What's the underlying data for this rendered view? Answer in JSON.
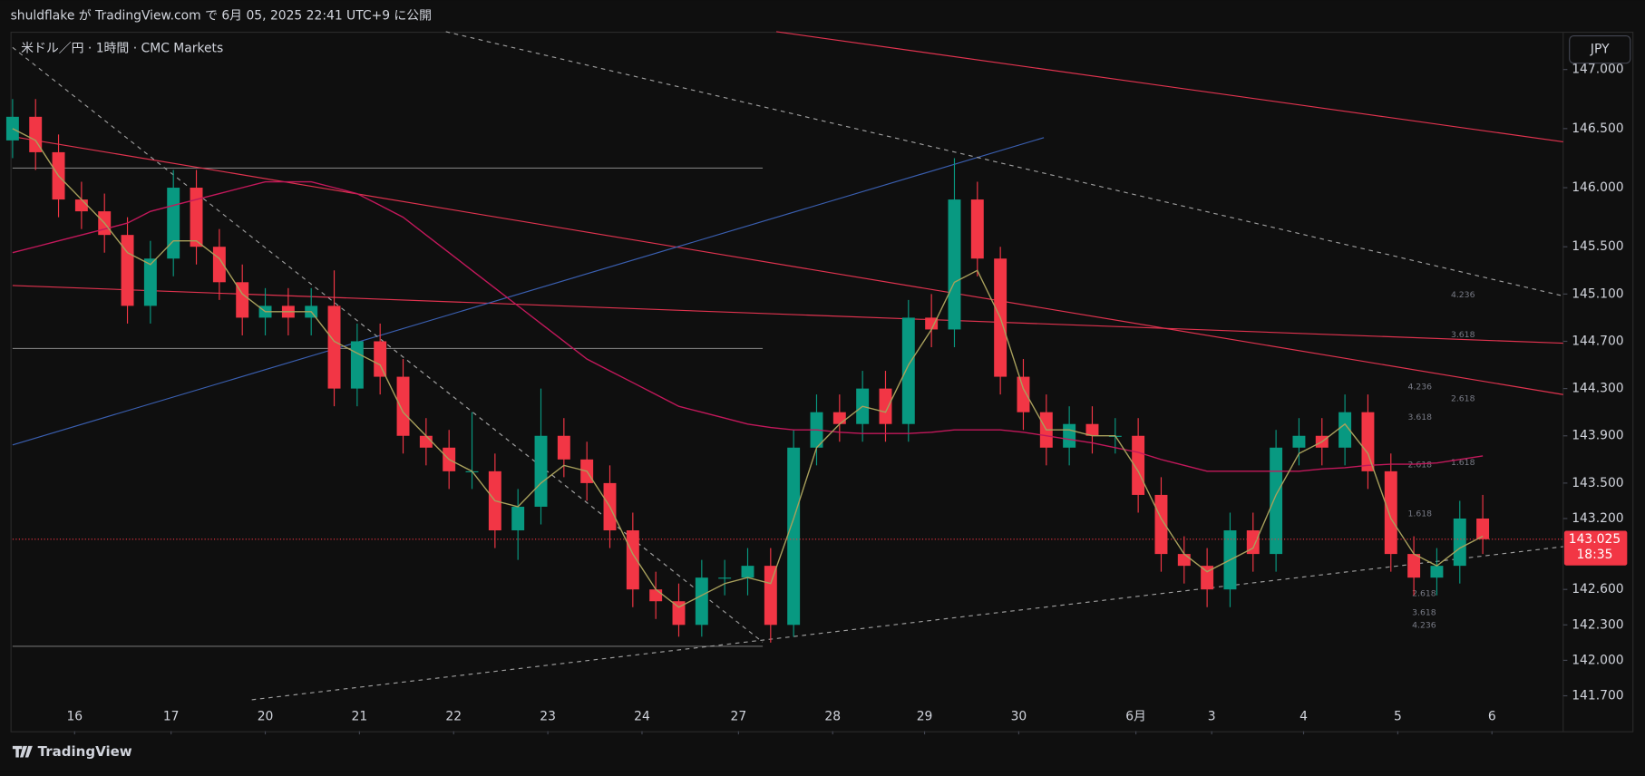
{
  "header": {
    "publish": "shuldflake が TradingView.com で 6月 05, 2025 22:41 UTC+9 に公開",
    "symbol": "米ドル／円 · 1時間 · CMC Markets",
    "currency": "JPY",
    "brand": "TradingView"
  },
  "chart_data": {
    "type": "candlestick",
    "open": [
      146.4,
      146.6,
      146.3,
      145.9,
      145.8,
      145.6,
      145.0,
      145.4,
      146.0,
      145.5,
      145.2,
      144.9,
      145.0,
      144.9,
      145.0,
      144.3,
      144.7,
      144.4,
      143.9,
      143.8,
      143.6,
      143.6,
      143.1,
      143.3,
      143.9,
      143.7,
      143.5,
      143.1,
      142.6,
      142.5,
      142.3,
      142.7,
      142.7,
      142.8,
      142.3,
      143.8,
      144.1,
      144.0,
      144.3,
      144.0,
      144.9,
      144.8,
      145.9,
      145.4,
      144.4,
      144.1,
      143.8,
      144.0,
      143.9,
      143.9,
      143.4,
      142.9,
      142.8,
      142.6,
      143.1,
      142.9,
      143.8,
      143.9,
      143.8,
      144.1,
      143.6,
      142.9,
      142.7,
      142.8,
      143.2
    ],
    "high": [
      146.75,
      146.75,
      146.45,
      146.05,
      145.95,
      145.75,
      145.55,
      146.15,
      146.15,
      145.65,
      145.35,
      145.15,
      145.15,
      145.15,
      145.3,
      144.85,
      144.85,
      144.55,
      144.05,
      143.95,
      144.1,
      143.75,
      143.45,
      144.3,
      144.05,
      143.85,
      143.65,
      143.25,
      142.75,
      142.65,
      142.85,
      142.85,
      142.95,
      142.95,
      143.95,
      144.25,
      144.25,
      144.45,
      144.45,
      145.05,
      145.1,
      146.25,
      146.05,
      145.5,
      144.55,
      144.25,
      144.15,
      144.15,
      144.05,
      144.05,
      143.55,
      143.05,
      142.95,
      143.25,
      143.25,
      143.95,
      144.05,
      144.05,
      144.25,
      144.25,
      143.75,
      143.05,
      142.95,
      143.35,
      143.4
    ],
    "low": [
      146.25,
      146.15,
      145.75,
      145.65,
      145.45,
      144.85,
      144.85,
      145.25,
      145.35,
      145.05,
      144.75,
      144.75,
      144.75,
      144.75,
      144.15,
      144.15,
      144.25,
      143.75,
      143.65,
      143.45,
      143.45,
      142.95,
      142.85,
      143.15,
      143.55,
      143.35,
      142.95,
      142.45,
      142.35,
      142.2,
      142.2,
      142.55,
      142.55,
      142.15,
      142.2,
      143.65,
      143.85,
      143.85,
      143.85,
      143.85,
      144.65,
      144.65,
      145.25,
      144.25,
      143.95,
      143.65,
      143.65,
      143.75,
      143.75,
      143.25,
      142.75,
      142.65,
      142.45,
      142.45,
      142.75,
      142.75,
      143.65,
      143.65,
      143.65,
      143.45,
      142.75,
      142.55,
      142.55,
      142.65,
      142.9
    ],
    "close": [
      146.6,
      146.3,
      145.9,
      145.8,
      145.6,
      145.0,
      145.4,
      146.0,
      145.5,
      145.2,
      144.9,
      145.0,
      144.9,
      145.0,
      144.3,
      144.7,
      144.4,
      143.9,
      143.8,
      143.6,
      143.6,
      143.1,
      143.3,
      143.9,
      143.7,
      143.5,
      143.1,
      142.6,
      142.5,
      142.3,
      142.7,
      142.7,
      142.8,
      142.3,
      143.8,
      144.1,
      144.0,
      144.3,
      144.0,
      144.9,
      144.8,
      145.9,
      145.4,
      144.4,
      144.1,
      143.8,
      144.0,
      143.9,
      143.9,
      143.4,
      142.9,
      142.8,
      142.6,
      143.1,
      142.9,
      143.8,
      143.9,
      143.8,
      144.1,
      143.6,
      142.9,
      142.7,
      142.8,
      143.2,
      143.025
    ],
    "up_color": "#089981",
    "down_color": "#f23645",
    "lines": [
      {
        "color": "#c2185b",
        "values": [
          145.45,
          145.5,
          145.55,
          145.6,
          145.65,
          145.7,
          145.8,
          145.85,
          145.9,
          145.95,
          146.0,
          146.05,
          146.05,
          146.05,
          146.0,
          145.95,
          145.85,
          145.75,
          145.6,
          145.45,
          145.3,
          145.15,
          145.0,
          144.85,
          144.7,
          144.55,
          144.45,
          144.35,
          144.25,
          144.15,
          144.1,
          144.05,
          144.0,
          143.97,
          143.95,
          143.95,
          143.93,
          143.92,
          143.92,
          143.92,
          143.93,
          143.95,
          143.95,
          143.95,
          143.93,
          143.9,
          143.87,
          143.84,
          143.8,
          143.76,
          143.7,
          143.65,
          143.6,
          143.6,
          143.6,
          143.6,
          143.6,
          143.62,
          143.63,
          143.65,
          143.66,
          143.66,
          143.67,
          143.7,
          143.73
        ]
      },
      {
        "color": "#a8a05c",
        "values": [
          146.5,
          146.4,
          146.1,
          145.9,
          145.7,
          145.45,
          145.35,
          145.55,
          145.55,
          145.4,
          145.1,
          144.95,
          144.95,
          144.95,
          144.7,
          144.6,
          144.5,
          144.1,
          143.9,
          143.7,
          143.6,
          143.35,
          143.3,
          143.5,
          143.65,
          143.6,
          143.3,
          142.9,
          142.6,
          142.45,
          142.55,
          142.65,
          142.7,
          142.65,
          143.2,
          143.8,
          144.0,
          144.15,
          144.1,
          144.5,
          144.8,
          145.2,
          145.3,
          144.9,
          144.3,
          143.95,
          143.95,
          143.9,
          143.9,
          143.6,
          143.2,
          142.9,
          142.75,
          142.85,
          142.95,
          143.4,
          143.75,
          143.85,
          144.0,
          143.75,
          143.2,
          142.9,
          142.8,
          142.95,
          143.05
        ]
      }
    ],
    "xlim": [
      0,
      67.5
    ],
    "xticks": [
      {
        "value": 2.7,
        "label": "16"
      },
      {
        "value": 6.9,
        "label": "17"
      },
      {
        "value": 11,
        "label": "20"
      },
      {
        "value": 15.1,
        "label": "21"
      },
      {
        "value": 19.2,
        "label": "22"
      },
      {
        "value": 23.3,
        "label": "23"
      },
      {
        "value": 27.4,
        "label": "24"
      },
      {
        "value": 31.6,
        "label": "27"
      },
      {
        "value": 35.7,
        "label": "28"
      },
      {
        "value": 39.7,
        "label": "29"
      },
      {
        "value": 43.8,
        "label": "30"
      },
      {
        "value": 48.9,
        "label": "6月"
      },
      {
        "value": 52.2,
        "label": "3"
      },
      {
        "value": 56.2,
        "label": "4"
      },
      {
        "value": 60.3,
        "label": "5"
      },
      {
        "value": 64.4,
        "label": "6"
      }
    ],
    "ylim": [
      141.4,
      147.32
    ],
    "yticks": [
      {
        "value": 147,
        "label": "147.000"
      },
      {
        "value": 146.5,
        "label": "146.500"
      },
      {
        "value": 146,
        "label": "146.000"
      },
      {
        "value": 145.5,
        "label": "145.500"
      },
      {
        "value": 145.1,
        "label": "145.100"
      },
      {
        "value": 144.7,
        "label": "144.700"
      },
      {
        "value": 144.3,
        "label": "144.300"
      },
      {
        "value": 143.9,
        "label": "143.900"
      },
      {
        "value": 143.5,
        "label": "143.500"
      },
      {
        "value": 143.2,
        "label": "143.200"
      },
      {
        "value": 142.6,
        "label": "142.600"
      },
      {
        "value": 142.3,
        "label": "142.300"
      },
      {
        "value": 142,
        "label": "142.000"
      },
      {
        "value": 141.7,
        "label": "141.700"
      }
    ],
    "last_price": 143.025,
    "countdown": "18:35",
    "price_color": "#f23645",
    "annotations": [
      "4.236",
      "3.618",
      "4.236",
      "2.618",
      "3.618",
      "2.618",
      "1.618",
      "1.618",
      "2.618",
      "3.618",
      "4.236"
    ]
  }
}
